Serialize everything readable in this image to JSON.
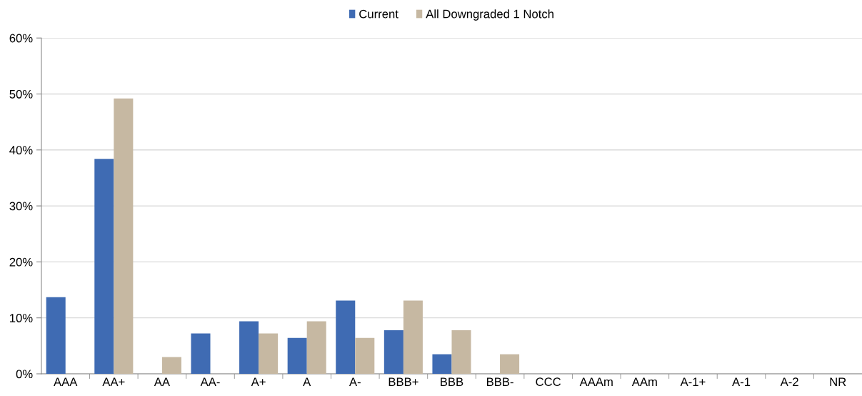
{
  "chart_data": {
    "type": "bar",
    "categories": [
      "AAA",
      "AA+",
      "AA",
      "AA-",
      "A+",
      "A",
      "A-",
      "BBB+",
      "BBB",
      "BBB-",
      "CCC",
      "AAAm",
      "AAm",
      "A-1+",
      "A-1",
      "A-2",
      "NR"
    ],
    "series": [
      {
        "name": "Current",
        "color": "#3f6bb3",
        "values": [
          13.7,
          38.4,
          0,
          7.2,
          9.4,
          6.4,
          13.1,
          7.8,
          3.5,
          0,
          0,
          0,
          0,
          0,
          0,
          0,
          0
        ]
      },
      {
        "name": "All Downgraded 1 Notch",
        "color": "#c6b8a2",
        "values": [
          0,
          49.2,
          3.0,
          0,
          7.2,
          9.4,
          6.4,
          13.1,
          7.8,
          3.5,
          0,
          0,
          0,
          0,
          0,
          0,
          0
        ]
      }
    ],
    "ylim": [
      0,
      60
    ],
    "yticks": [
      {
        "value": 0,
        "label": "0%"
      },
      {
        "value": 10,
        "label": "10%"
      },
      {
        "value": 20,
        "label": "20%"
      },
      {
        "value": 30,
        "label": "30%"
      },
      {
        "value": 40,
        "label": "40%"
      },
      {
        "value": 50,
        "label": "50%"
      },
      {
        "value": 60,
        "label": "60%"
      }
    ],
    "grid": "y",
    "legend": "top"
  }
}
